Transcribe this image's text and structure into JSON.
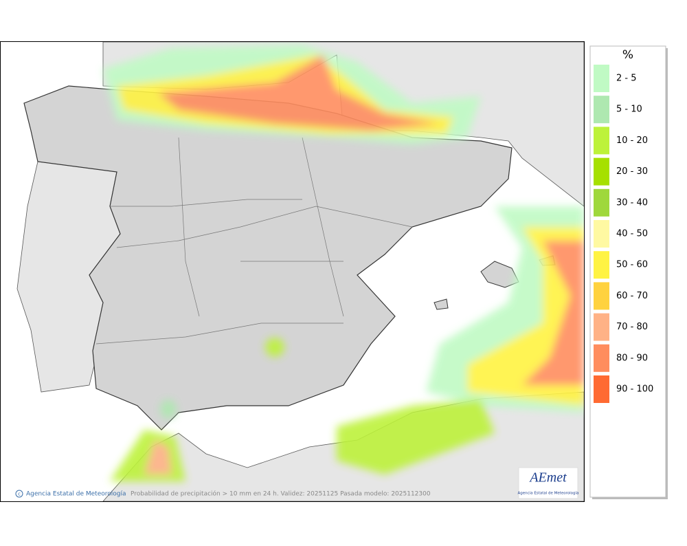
{
  "map": {
    "credit": "Agencia Estatal de Meteorología",
    "caption": "Probabilidad de precipitación > 10 mm en 24 h. Validez: 20251125 Pasada modelo: 2025112300"
  },
  "legend": {
    "title": "%",
    "items": [
      {
        "label": "2 - 5",
        "color": "#c0fac4"
      },
      {
        "label": "5 - 10",
        "color": "#aee8b0"
      },
      {
        "label": "10 - 20",
        "color": "#bdf23a"
      },
      {
        "label": "20 - 30",
        "color": "#a6e000"
      },
      {
        "label": "30 - 40",
        "color": "#9fd83c"
      },
      {
        "label": "40 - 50",
        "color": "#fff9a2"
      },
      {
        "label": "50 - 60",
        "color": "#fff343"
      },
      {
        "label": "60 - 70",
        "color": "#ffd23f"
      },
      {
        "label": "70 - 80",
        "color": "#ffb286"
      },
      {
        "label": "80 - 90",
        "color": "#ff8d5e"
      },
      {
        "label": "90 - 100",
        "color": "#ff6a32"
      }
    ]
  },
  "logo": {
    "text": "AEmet",
    "subtitle": "Agencia Estatal de Meteorología"
  }
}
